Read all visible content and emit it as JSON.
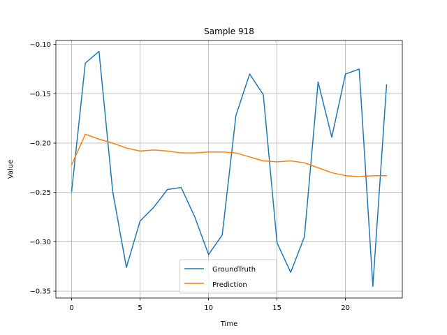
{
  "chart_data": {
    "type": "line",
    "title": "Sample 918",
    "xlabel": "Time",
    "ylabel": "Value",
    "xlim": [
      -1.15,
      24.15
    ],
    "ylim": [
      -0.357,
      -0.096
    ],
    "x_ticks": [
      0,
      5,
      10,
      15,
      20
    ],
    "x_tick_labels": [
      "0",
      "5",
      "10",
      "15",
      "20"
    ],
    "y_ticks": [
      -0.35,
      -0.3,
      -0.25,
      -0.2,
      -0.15,
      -0.1
    ],
    "y_tick_labels": [
      "−0.35",
      "−0.30",
      "−0.25",
      "−0.20",
      "−0.15",
      "−0.10"
    ],
    "grid": true,
    "legend_position": "lower center",
    "x": [
      0,
      1,
      2,
      3,
      4,
      5,
      6,
      7,
      8,
      9,
      10,
      11,
      12,
      13,
      14,
      15,
      16,
      17,
      18,
      19,
      20,
      21,
      22,
      23
    ],
    "series": [
      {
        "name": "GroundTruth",
        "color": "#1f77b4",
        "values": [
          -0.249,
          -0.119,
          -0.107,
          -0.249,
          -0.326,
          -0.279,
          -0.265,
          -0.247,
          -0.245,
          -0.275,
          -0.313,
          -0.293,
          -0.172,
          -0.13,
          -0.151,
          -0.301,
          -0.331,
          -0.295,
          -0.138,
          -0.194,
          -0.13,
          -0.125,
          -0.345,
          -0.141
        ]
      },
      {
        "name": "Prediction",
        "color": "#ff7f0e",
        "values": [
          -0.222,
          -0.191,
          -0.196,
          -0.2,
          -0.205,
          -0.208,
          -0.207,
          -0.208,
          -0.21,
          -0.21,
          -0.209,
          -0.209,
          -0.21,
          -0.214,
          -0.218,
          -0.219,
          -0.218,
          -0.22,
          -0.225,
          -0.23,
          -0.233,
          -0.234,
          -0.233,
          -0.233
        ]
      }
    ]
  }
}
